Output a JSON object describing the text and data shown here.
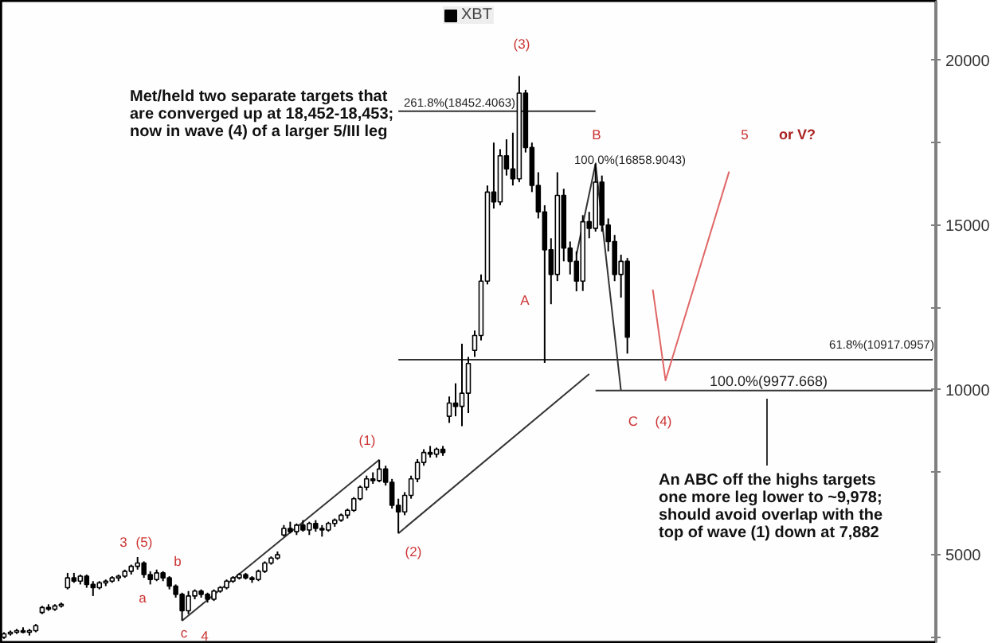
{
  "chart_data": {
    "type": "candlestick",
    "categories": [
      null,
      null,
      null,
      null,
      null,
      null,
      null,
      null,
      null,
      null,
      null,
      null,
      null,
      null,
      null,
      null,
      null,
      null,
      null,
      null,
      null,
      null,
      null,
      null,
      null,
      null,
      null,
      null,
      null,
      null,
      null,
      null,
      null,
      null,
      null,
      null,
      null,
      null,
      null,
      null,
      null,
      null,
      null,
      null,
      null,
      null,
      null,
      null,
      null,
      null,
      null,
      null,
      null,
      null,
      null,
      null,
      null,
      null,
      null,
      null,
      null,
      null,
      null,
      null,
      null,
      null,
      null,
      null,
      null,
      null,
      null,
      null,
      null,
      null,
      null,
      null,
      null,
      null,
      null,
      null,
      null,
      null,
      null,
      null,
      null,
      null,
      null,
      null,
      null,
      null,
      null,
      null,
      null,
      null,
      null,
      null,
      null,
      null,
      null,
      null,
      null,
      null,
      null,
      null,
      null,
      null,
      null,
      null,
      null,
      null,
      null,
      null,
      null,
      null,
      null,
      null,
      null,
      null,
      null,
      null,
      null,
      null,
      null,
      null,
      null,
      null,
      null,
      null,
      null,
      null,
      null,
      null,
      null,
      null,
      null,
      null,
      null,
      null,
      null,
      null,
      null,
      null,
      null,
      null,
      null,
      null,
      null
    ],
    "series": [
      {
        "name": "XBT",
        "color": "#000000",
        "ohlc": [
          [
            2500,
            2650,
            2450,
            2600
          ],
          [
            2600,
            2700,
            2550,
            2650
          ],
          [
            2650,
            2750,
            2600,
            2700
          ],
          [
            2700,
            2800,
            2620,
            2650
          ],
          [
            2650,
            2750,
            2550,
            2700
          ],
          [
            2700,
            2900,
            2650,
            2850
          ],
          [
            3250,
            3450,
            3200,
            3400
          ],
          [
            3400,
            3500,
            3300,
            3350
          ],
          [
            3350,
            3500,
            3300,
            3450
          ],
          [
            3450,
            3550,
            3400,
            3500
          ],
          [
            4000,
            4450,
            3950,
            4300
          ],
          [
            4300,
            4450,
            4150,
            4200
          ],
          [
            4200,
            4400,
            4100,
            4350
          ],
          [
            4350,
            4400,
            4000,
            4100
          ],
          [
            4100,
            4200,
            3750,
            4000
          ],
          [
            4000,
            4200,
            3950,
            4150
          ],
          [
            4150,
            4250,
            4050,
            4200
          ],
          [
            4200,
            4350,
            4150,
            4300
          ],
          [
            4300,
            4400,
            4200,
            4350
          ],
          [
            4350,
            4550,
            4300,
            4500
          ],
          [
            4500,
            4700,
            4400,
            4650
          ],
          [
            4650,
            4930,
            4550,
            4750
          ],
          [
            4750,
            4800,
            4300,
            4400
          ],
          [
            4400,
            4500,
            4100,
            4250
          ],
          [
            4250,
            4550,
            4200,
            4450
          ],
          [
            4450,
            4500,
            4200,
            4300
          ],
          [
            4300,
            4350,
            3950,
            4050
          ],
          [
            4050,
            4100,
            3700,
            3800
          ],
          [
            3800,
            3850,
            3000,
            3300
          ],
          [
            3300,
            3900,
            3200,
            3750
          ],
          [
            3750,
            3950,
            3650,
            3900
          ],
          [
            3900,
            3950,
            3700,
            3800
          ],
          [
            3800,
            3850,
            3550,
            3650
          ],
          [
            3650,
            3950,
            3600,
            3900
          ],
          [
            3900,
            4050,
            3850,
            4000
          ],
          [
            4000,
            4250,
            3950,
            4200
          ],
          [
            4200,
            4350,
            4150,
            4300
          ],
          [
            4300,
            4450,
            4250,
            4400
          ],
          [
            4400,
            4450,
            4250,
            4300
          ],
          [
            4300,
            4350,
            4150,
            4250
          ],
          [
            4250,
            4550,
            4200,
            4500
          ],
          [
            4500,
            4800,
            4450,
            4750
          ],
          [
            4750,
            4950,
            4700,
            4900
          ],
          [
            4900,
            5100,
            4850,
            5000
          ],
          [
            5600,
            5900,
            5550,
            5800
          ],
          [
            5800,
            6000,
            5650,
            5700
          ],
          [
            5700,
            5950,
            5600,
            5900
          ],
          [
            5900,
            6050,
            5700,
            5750
          ],
          [
            5750,
            6000,
            5600,
            5950
          ],
          [
            5950,
            6050,
            5700,
            5800
          ],
          [
            5800,
            5900,
            5550,
            5750
          ],
          [
            5750,
            6000,
            5700,
            5950
          ],
          [
            5950,
            6100,
            5850,
            6050
          ],
          [
            6050,
            6250,
            6000,
            6200
          ],
          [
            6200,
            6400,
            6100,
            6350
          ],
          [
            6350,
            6750,
            6300,
            6700
          ],
          [
            6700,
            7100,
            6650,
            7050
          ],
          [
            7050,
            7400,
            6950,
            7300
          ],
          [
            7300,
            7500,
            7150,
            7250
          ],
          [
            7250,
            7882,
            7200,
            7600
          ],
          [
            7600,
            7700,
            7100,
            7200
          ],
          [
            7200,
            7300,
            6400,
            6500
          ],
          [
            6500,
            6700,
            5650,
            6300
          ],
          [
            6300,
            6900,
            6200,
            6800
          ],
          [
            6800,
            7400,
            6700,
            7300
          ],
          [
            7300,
            7900,
            7200,
            7800
          ],
          [
            7800,
            8200,
            7700,
            8100
          ],
          [
            8100,
            8300,
            7950,
            8050
          ],
          [
            8050,
            8250,
            7950,
            8200
          ],
          [
            8200,
            8300,
            8000,
            8100
          ],
          [
            9200,
            9800,
            9000,
            9600
          ],
          [
            9600,
            10200,
            9200,
            9500
          ],
          [
            9500,
            11400,
            8900,
            9900
          ],
          [
            9900,
            11000,
            9300,
            10800
          ],
          [
            11200,
            11800,
            11000,
            11650
          ],
          [
            11650,
            13500,
            11500,
            13300
          ],
          [
            13300,
            16200,
            13200,
            16000
          ],
          [
            16000,
            17500,
            15500,
            15700
          ],
          [
            15700,
            17300,
            15600,
            17100
          ],
          [
            17100,
            17600,
            16500,
            16700
          ],
          [
            16700,
            17800,
            16200,
            16400
          ],
          [
            16400,
            19520,
            16300,
            19000
          ],
          [
            19000,
            19100,
            17200,
            17350
          ],
          [
            17350,
            17500,
            16000,
            16200
          ],
          [
            16200,
            16600,
            15200,
            15400
          ],
          [
            15400,
            15600,
            10820,
            14250
          ],
          [
            14250,
            14600,
            12600,
            13500
          ],
          [
            13500,
            16600,
            13300,
            15900
          ],
          [
            15900,
            16100,
            13900,
            14300
          ],
          [
            14300,
            14500,
            13500,
            13900
          ],
          [
            13900,
            14200,
            12990,
            13300
          ],
          [
            13300,
            15300,
            13000,
            15100
          ],
          [
            15100,
            15400,
            14600,
            14900
          ],
          [
            14900,
            16850,
            14800,
            16300
          ],
          [
            16300,
            16500,
            14800,
            15000
          ],
          [
            15000,
            15200,
            14200,
            14500
          ],
          [
            14500,
            14700,
            13300,
            13500
          ],
          [
            13500,
            14100,
            12800,
            13900
          ],
          [
            13900,
            14000,
            11100,
            11600
          ],
          null,
          null,
          null,
          null,
          null,
          null,
          null,
          null,
          null,
          null,
          null,
          null,
          null,
          null,
          null,
          null,
          null,
          null,
          null,
          null,
          null,
          null,
          null,
          null,
          null,
          null,
          null,
          null,
          null,
          null,
          null,
          null,
          null,
          null,
          null,
          null,
          null,
          null,
          null,
          null,
          null,
          null,
          null,
          null,
          null,
          null,
          null,
          null
        ]
      },
      {
        "type": "line",
        "color": "#333333",
        "values": [
          null,
          null,
          null,
          null,
          null,
          null,
          null,
          null,
          null,
          null,
          null,
          null,
          null,
          null,
          null,
          null,
          null,
          null,
          null,
          null,
          null,
          null,
          null,
          null,
          null,
          null,
          null,
          null,
          3000,
          null,
          null,
          null,
          null,
          null,
          null,
          null,
          null,
          null,
          null,
          null,
          null,
          null,
          null,
          null,
          null,
          null,
          null,
          null,
          null,
          null,
          null,
          null,
          null,
          null,
          null,
          null,
          null,
          null,
          null,
          7882,
          null,
          null,
          null,
          null,
          null,
          null,
          null,
          null,
          null,
          null,
          null,
          null,
          null,
          null,
          null,
          null,
          null,
          null,
          null,
          null,
          null,
          null,
          null,
          null,
          null,
          null,
          null,
          null,
          null,
          null,
          null,
          null,
          null,
          null,
          null,
          null,
          null,
          null,
          null,
          null,
          null,
          null,
          null,
          null,
          null,
          null,
          null,
          null,
          null,
          null,
          null,
          null,
          null,
          null,
          null,
          null,
          null,
          null,
          null,
          null,
          null,
          null,
          null,
          null,
          null,
          null,
          null,
          null,
          null,
          null,
          null,
          null,
          null,
          null,
          null,
          null,
          null,
          null,
          null,
          null,
          null,
          null,
          null,
          null,
          null,
          null,
          null
        ]
      },
      {
        "type": "line",
        "color": "#333333",
        "values": [
          null,
          null,
          null,
          null,
          null,
          null,
          null,
          null,
          null,
          null,
          null,
          null,
          null,
          null,
          null,
          null,
          null,
          null,
          null,
          null,
          null,
          null,
          null,
          null,
          null,
          null,
          null,
          null,
          null,
          null,
          null,
          null,
          null,
          null,
          null,
          null,
          null,
          null,
          null,
          null,
          null,
          null,
          null,
          null,
          null,
          null,
          null,
          null,
          null,
          null,
          null,
          null,
          null,
          null,
          null,
          null,
          null,
          null,
          null,
          null,
          null,
          null,
          5650,
          null,
          null,
          null,
          null,
          null,
          null,
          null,
          null,
          null,
          null,
          null,
          null,
          null,
          null,
          null,
          null,
          null,
          null,
          null,
          null,
          null,
          null,
          null,
          null,
          null,
          null,
          null,
          null,
          null,
          10480,
          null,
          null,
          null,
          null,
          null,
          null,
          null,
          null,
          null,
          null,
          null,
          null,
          null,
          null,
          null,
          null,
          null,
          null,
          null,
          null,
          null,
          null,
          null,
          null,
          null,
          null,
          null,
          null,
          null,
          null,
          null,
          null,
          null,
          null,
          null,
          null,
          null,
          null,
          null,
          null,
          null,
          null,
          null,
          null,
          null,
          null,
          null,
          null,
          null,
          null,
          null,
          null,
          null,
          null
        ]
      },
      {
        "type": "line",
        "color": "#333333",
        "values": [
          null,
          null,
          null,
          null,
          null,
          null,
          null,
          null,
          null,
          null,
          null,
          null,
          null,
          null,
          null,
          null,
          null,
          null,
          null,
          null,
          null,
          null,
          null,
          null,
          null,
          null,
          null,
          null,
          null,
          null,
          null,
          null,
          null,
          null,
          null,
          null,
          null,
          null,
          null,
          null,
          null,
          null,
          null,
          null,
          null,
          null,
          null,
          null,
          null,
          null,
          null,
          null,
          null,
          null,
          null,
          null,
          null,
          null,
          null,
          null,
          null,
          null,
          18452.4063,
          null,
          null,
          null,
          null,
          null,
          null,
          null,
          null,
          null,
          null,
          null,
          null,
          null,
          null,
          null,
          null,
          null,
          null,
          null,
          null,
          null,
          null,
          null,
          null,
          null,
          null,
          null,
          null,
          null,
          null,
          18452.4063,
          null,
          null,
          null,
          null,
          null,
          null,
          null,
          null,
          null,
          null,
          null,
          null,
          null,
          null,
          null,
          null,
          null,
          null,
          null,
          null,
          null,
          null,
          null,
          null,
          null,
          null,
          null,
          null,
          null,
          null,
          null,
          null,
          null,
          null,
          null,
          null,
          null,
          null,
          null,
          null,
          null,
          null,
          null,
          null,
          null,
          null,
          null,
          null,
          null,
          null,
          null,
          null,
          null
        ]
      },
      {
        "type": "line",
        "color": "#333333",
        "values": [
          null,
          null,
          null,
          null,
          null,
          null,
          null,
          null,
          null,
          null,
          null,
          null,
          null,
          null,
          null,
          null,
          null,
          null,
          null,
          null,
          null,
          null,
          null,
          null,
          null,
          null,
          null,
          null,
          null,
          null,
          null,
          null,
          null,
          null,
          null,
          null,
          null,
          null,
          null,
          null,
          null,
          null,
          null,
          null,
          null,
          null,
          null,
          null,
          null,
          null,
          null,
          null,
          null,
          null,
          null,
          null,
          null,
          null,
          null,
          null,
          null,
          null,
          10917.0957,
          null,
          null,
          null,
          null,
          null,
          null,
          null,
          null,
          null,
          null,
          null,
          null,
          null,
          null,
          null,
          null,
          null,
          null,
          null,
          null,
          null,
          null,
          null,
          null,
          null,
          null,
          null,
          null,
          null,
          null,
          null,
          null,
          null,
          null,
          null,
          null,
          null,
          null,
          null,
          null,
          null,
          null,
          null,
          null,
          null,
          null,
          null,
          null,
          null,
          null,
          null,
          null,
          null,
          null,
          null,
          null,
          null,
          null,
          null,
          null,
          null,
          null,
          null,
          null,
          null,
          null,
          null,
          null,
          null,
          null,
          null,
          null,
          null,
          null,
          null,
          null,
          null,
          null,
          null,
          null,
          null,
          null,
          null,
          10917.0957
        ]
      },
      {
        "type": "line",
        "color": "#333333",
        "values": [
          null,
          null,
          null,
          null,
          null,
          null,
          null,
          null,
          null,
          null,
          null,
          null,
          null,
          null,
          null,
          null,
          null,
          null,
          null,
          null,
          null,
          null,
          null,
          null,
          null,
          null,
          null,
          null,
          null,
          null,
          null,
          null,
          null,
          null,
          null,
          null,
          null,
          null,
          null,
          null,
          null,
          null,
          null,
          null,
          null,
          null,
          null,
          null,
          null,
          null,
          null,
          null,
          null,
          null,
          null,
          null,
          null,
          null,
          null,
          null,
          null,
          null,
          null,
          null,
          null,
          null,
          null,
          null,
          null,
          null,
          null,
          null,
          null,
          null,
          null,
          null,
          null,
          null,
          null,
          null,
          null,
          null,
          null,
          null,
          null,
          null,
          null,
          null,
          null,
          null,
          null,
          null,
          null,
          9977.668,
          null,
          null,
          null,
          null,
          null,
          null,
          null,
          null,
          null,
          null,
          null,
          null,
          null,
          null,
          null,
          null,
          null,
          null,
          null,
          null,
          null,
          null,
          null,
          null,
          null,
          null,
          null,
          null,
          null,
          null,
          null,
          null,
          null,
          null,
          null,
          null,
          null,
          null,
          null,
          null,
          null,
          null,
          null,
          null,
          null,
          null,
          null,
          null,
          null,
          null,
          null,
          null,
          9977.668
        ]
      },
      {
        "type": "line",
        "color": "#333333",
        "values": [
          null,
          null,
          null,
          null,
          null,
          null,
          null,
          null,
          null,
          null,
          null,
          null,
          null,
          null,
          null,
          null,
          null,
          null,
          null,
          null,
          null,
          null,
          null,
          null,
          null,
          null,
          null,
          null,
          null,
          null,
          null,
          null,
          null,
          null,
          null,
          null,
          null,
          null,
          null,
          null,
          null,
          null,
          null,
          null,
          null,
          null,
          null,
          null,
          null,
          null,
          null,
          null,
          null,
          null,
          null,
          null,
          null,
          null,
          null,
          null,
          null,
          null,
          null,
          null,
          null,
          null,
          null,
          null,
          null,
          null,
          null,
          null,
          null,
          null,
          null,
          null,
          null,
          null,
          null,
          null,
          null,
          null,
          null,
          null,
          null,
          null,
          null,
          null,
          null,
          null,
          14100,
          null,
          null,
          16858.9043,
          null,
          null,
          null,
          9977.668,
          null,
          null,
          null,
          null,
          null,
          null,
          null,
          null,
          null,
          null,
          null,
          null,
          null,
          null,
          null,
          null,
          null,
          null,
          null,
          null,
          null,
          null,
          null,
          null,
          null,
          null,
          null,
          null,
          null,
          null,
          null,
          null,
          null,
          null,
          null,
          null,
          null,
          null,
          null,
          null,
          null,
          null,
          null,
          null,
          null,
          null,
          null,
          null,
          null
        ]
      },
      {
        "type": "line",
        "color": "#e06666",
        "values": [
          null,
          null,
          null,
          null,
          null,
          null,
          null,
          null,
          null,
          null,
          null,
          null,
          null,
          null,
          null,
          null,
          null,
          null,
          null,
          null,
          null,
          null,
          null,
          null,
          null,
          null,
          null,
          null,
          null,
          null,
          null,
          null,
          null,
          null,
          null,
          null,
          null,
          null,
          null,
          null,
          null,
          null,
          null,
          null,
          null,
          null,
          null,
          null,
          null,
          null,
          null,
          null,
          null,
          null,
          null,
          null,
          null,
          null,
          null,
          null,
          null,
          null,
          null,
          null,
          null,
          null,
          null,
          null,
          null,
          null,
          null,
          null,
          null,
          null,
          null,
          null,
          null,
          null,
          null,
          null,
          null,
          null,
          null,
          null,
          null,
          null,
          null,
          null,
          null,
          null,
          null,
          null,
          null,
          null,
          null,
          null,
          null,
          null,
          null,
          null,
          null,
          null,
          13040,
          null,
          10290,
          null,
          null,
          null,
          null,
          null,
          null,
          null,
          null,
          null,
          16620,
          null,
          null,
          null,
          null,
          null,
          null,
          null,
          null,
          null,
          null,
          null,
          null,
          null,
          null,
          null,
          null,
          null,
          null,
          null,
          null,
          null,
          null,
          null,
          null,
          null,
          null,
          null,
          null,
          null,
          null,
          null,
          null
        ]
      }
    ],
    "ylim": [
      2300,
      21800
    ],
    "yticks": [
      {
        "value": 2500,
        "label": null
      },
      5000,
      {
        "value": 7500,
        "label": null
      },
      10000,
      {
        "value": 12500,
        "label": null
      },
      15000,
      {
        "value": 17500,
        "label": null
      },
      20000
    ],
    "tick_labels": "y",
    "legend": "top",
    "annotations": [
      "Met/held two separate targets that are converged up at 18,452-18,453; now in wave (4) of a larger 5/III leg",
      "An ABC off the highs targets one more leg lower to ~9,978; should avoid overlap with the top of wave (1) down at 7,882",
      "261.8%(18452.4063)",
      "100.0%(16858.9043)",
      "61.8%(10917.0957)",
      "100.0%(9977.668)",
      "3",
      "(5)",
      "a",
      "b",
      "c",
      "4",
      "(1)",
      "(2)",
      "(3)",
      "A",
      "B",
      "C",
      "(4)",
      "5",
      "or V?"
    ]
  }
}
